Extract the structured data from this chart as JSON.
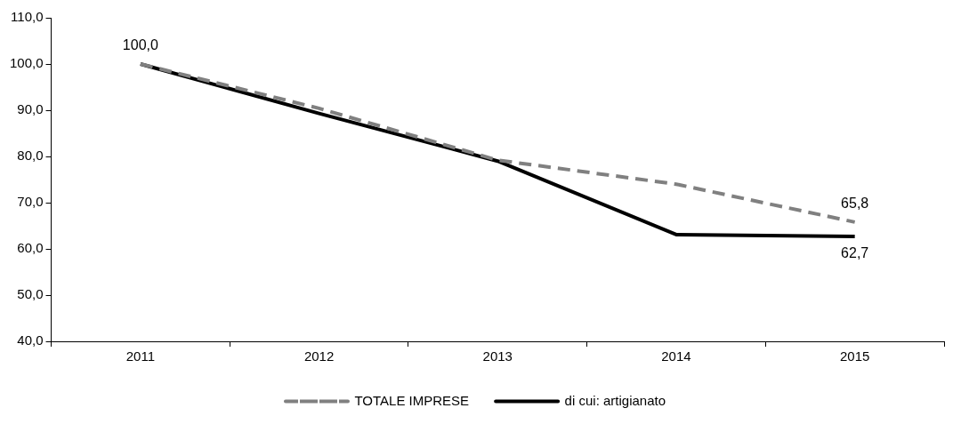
{
  "chart_data": {
    "type": "line",
    "categories": [
      "2011",
      "2012",
      "2013",
      "2014",
      "2015"
    ],
    "series": [
      {
        "name": "TOTALE IMPRESE",
        "color": "#808080",
        "line_style": "dashed",
        "values": [
          100,
          90.4,
          79.2,
          74,
          65.8
        ],
        "value_labels": [
          "100,0",
          null,
          null,
          null,
          "65,8"
        ]
      },
      {
        "name": "di cui: artigianato",
        "color": "#000000",
        "line_style": "solid",
        "values": [
          100,
          89.3,
          79,
          63.1,
          62.7
        ],
        "value_labels": [
          null,
          null,
          null,
          null,
          "62,7"
        ]
      }
    ],
    "ylim": [
      40,
      110
    ],
    "yticks": [
      {
        "value": 40,
        "label": "40,0"
      },
      {
        "value": 50,
        "label": "50,0"
      },
      {
        "value": 60,
        "label": "60,0"
      },
      {
        "value": 70,
        "label": "70,0"
      },
      {
        "value": 80,
        "label": "80,0"
      },
      {
        "value": 90,
        "label": "90,0"
      },
      {
        "value": 100,
        "label": "100,0"
      },
      {
        "value": 110,
        "label": "110,0"
      }
    ],
    "grid": false,
    "legend": "bottom",
    "marker": "none"
  }
}
